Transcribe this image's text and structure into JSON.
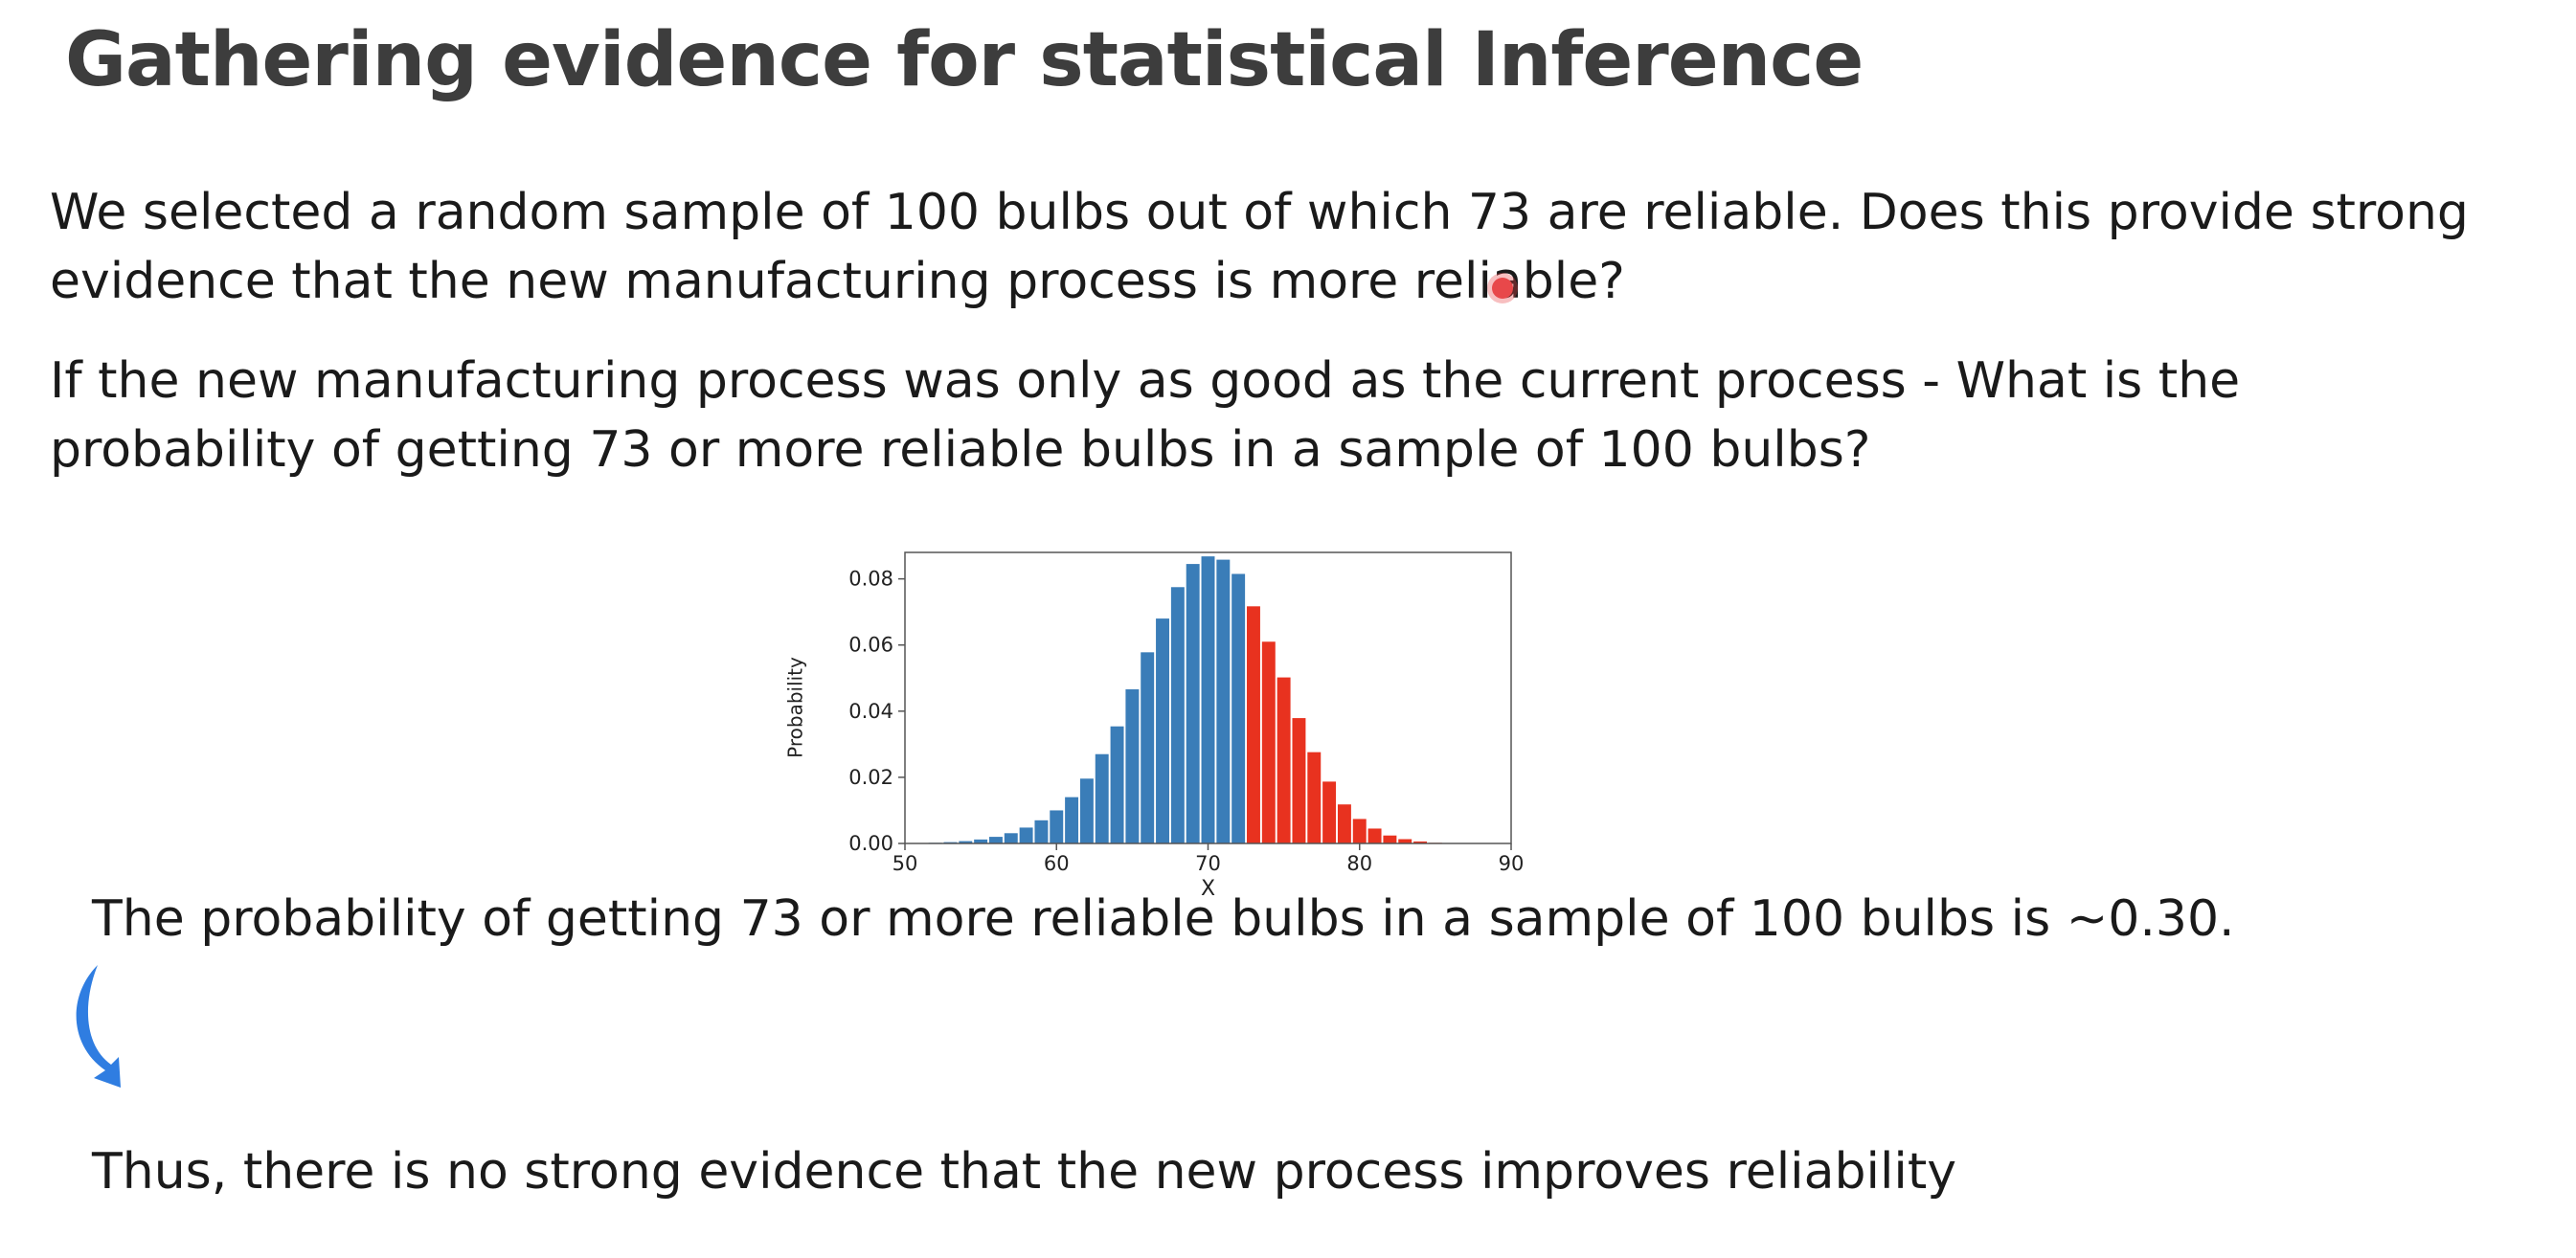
{
  "slide": {
    "title": "Gathering evidence for statistical Inference",
    "paragraph_1": "We selected a random sample of 100 bulbs out of which 73 are reliable. Does this provide strong evidence that the new manufacturing process is more reliable?",
    "paragraph_2": "If the new manufacturing process was only as good as the current process - What is the probability of getting 73 or more reliable bulbs in a sample of 100 bulbs?",
    "result": "The probability of getting 73 or more reliable bulbs in a sample of 100 bulbs is ~0.30.",
    "conclusion": "Thus, there is no strong evidence that the new process improves reliability",
    "arrow_icon": "curved-down-arrow-icon",
    "arrow_color": "#2f7de1",
    "cursor_color": "#e8484a"
  },
  "chart_data": {
    "type": "bar",
    "title": "",
    "xlabel": "X",
    "ylabel": "Probability",
    "xlim": [
      50,
      90
    ],
    "ylim": [
      0,
      0.088
    ],
    "x_ticks": [
      50,
      60,
      70,
      80,
      90
    ],
    "y_ticks": [
      "0.00",
      "0.02",
      "0.04",
      "0.06",
      "0.08"
    ],
    "grid": false,
    "colors": {
      "below": "#3a7db8",
      "highlighted": "#e8321f"
    },
    "highlight_from": 73,
    "x": [
      50,
      51,
      52,
      53,
      54,
      55,
      56,
      57,
      58,
      59,
      60,
      61,
      62,
      63,
      64,
      65,
      66,
      67,
      68,
      69,
      70,
      71,
      72,
      73,
      74,
      75,
      76,
      77,
      78,
      79,
      80,
      81,
      82,
      83,
      84,
      85,
      86,
      87,
      88,
      89,
      90
    ],
    "values": [
      0.0,
      0.0001,
      0.0002,
      0.0004,
      0.0007,
      0.0012,
      0.002,
      0.0031,
      0.0048,
      0.007,
      0.01,
      0.014,
      0.0196,
      0.027,
      0.0354,
      0.0466,
      0.0578,
      0.068,
      0.0775,
      0.0845,
      0.0868,
      0.0858,
      0.0815,
      0.0717,
      0.061,
      0.0502,
      0.0379,
      0.0276,
      0.0187,
      0.0118,
      0.0074,
      0.0045,
      0.0024,
      0.0013,
      0.0006,
      0.0002,
      0.0001,
      0.0,
      0.0,
      0.0,
      0.0
    ]
  }
}
